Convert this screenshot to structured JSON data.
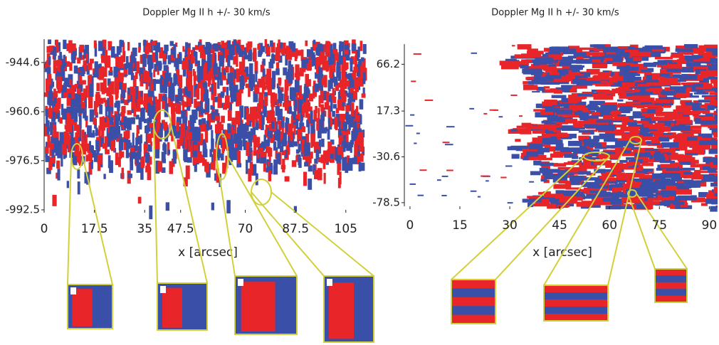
{
  "chart_data": [
    {
      "type": "image-map",
      "title": "Doppler Mg II h +/- 30 km/s",
      "xlabel": "x [arcsec]",
      "xlim": [
        0,
        111
      ],
      "xticks": [
        0,
        17.5,
        35,
        47.5,
        70,
        87.5,
        105
      ],
      "ylim": [
        -992.5,
        -937
      ],
      "yticks": [
        -944.6,
        -960.6,
        -976.5,
        -992.5
      ],
      "colors": [
        "#e8262a",
        "#3a4fa8"
      ]
    },
    {
      "type": "image-map",
      "title": "Doppler Mg II h +/- 30 km/s",
      "xlabel": "x [arcsec]",
      "xlim": [
        -1.7,
        92.5
      ],
      "xticks": [
        0,
        15,
        30,
        45,
        60,
        75,
        90
      ],
      "ylim": [
        -82.3,
        87.3
      ],
      "yticks": [
        66.2,
        17.3,
        -30.6,
        -78.5
      ],
      "colors": [
        "#e8262a",
        "#3a4fa8"
      ]
    }
  ]
}
